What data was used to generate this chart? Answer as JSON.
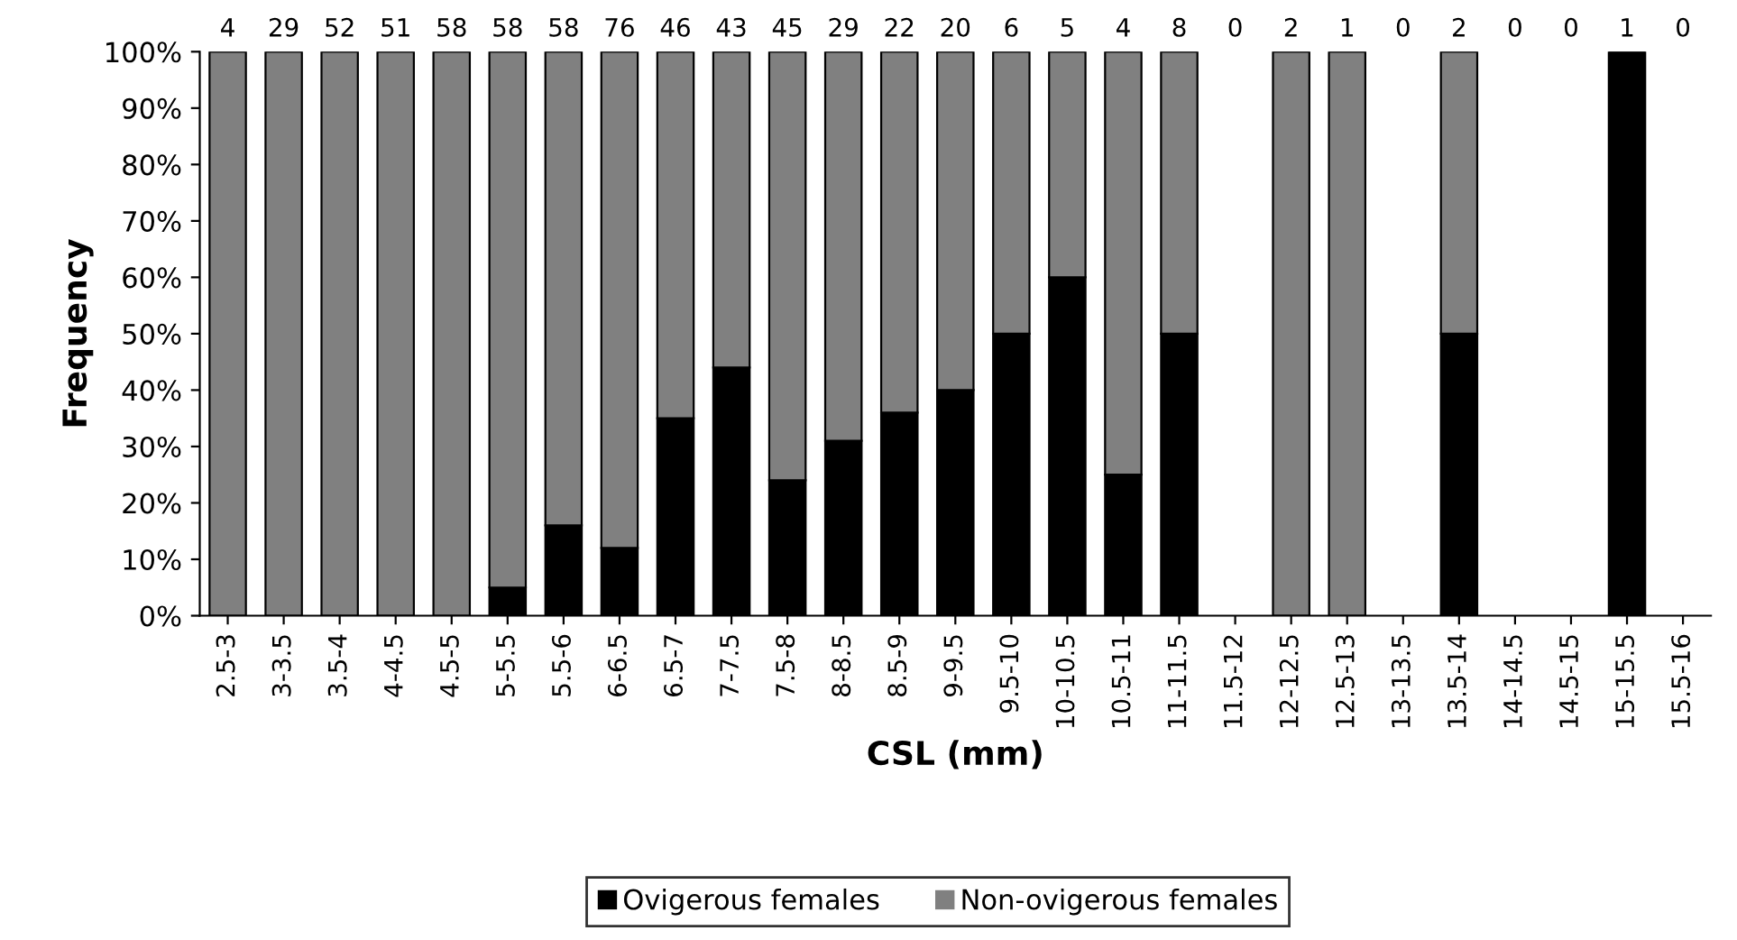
{
  "chart_data": {
    "type": "bar",
    "stacked": true,
    "xlabel": "CSL (mm)",
    "ylabel": "Frequency",
    "categories": [
      "2.5-3",
      "3-3.5",
      "3.5-4",
      "4-4.5",
      "4.5-5",
      "5-5.5",
      "5.5-6",
      "6-6.5",
      "6.5-7",
      "7-7.5",
      "7.5-8",
      "8-8.5",
      "8.5-9",
      "9-9.5",
      "9.5-10",
      "10-10.5",
      "10.5-11",
      "11-11.5",
      "11.5-12",
      "12-12.5",
      "12.5-13",
      "13-13.5",
      "13.5-14",
      "14-14.5",
      "14.5-15",
      "15-15.5",
      "15.5-16"
    ],
    "series": [
      {
        "name": "Ovigerous females",
        "color": "#000000",
        "values": [
          0,
          0,
          0,
          0,
          0,
          5,
          16,
          12,
          35,
          44,
          24,
          31,
          36,
          40,
          50,
          60,
          25,
          50,
          null,
          0,
          0,
          null,
          50,
          null,
          null,
          100,
          null
        ]
      },
      {
        "name": "Non-ovigerous females",
        "color": "#808080",
        "values": [
          100,
          100,
          100,
          100,
          100,
          95,
          84,
          88,
          65,
          56,
          76,
          69,
          64,
          60,
          50,
          40,
          75,
          50,
          null,
          100,
          100,
          null,
          50,
          null,
          null,
          0,
          null
        ]
      }
    ],
    "annotations": [
      "4",
      "29",
      "52",
      "51",
      "58",
      "58",
      "58",
      "76",
      "46",
      "43",
      "45",
      "29",
      "22",
      "20",
      "6",
      "5",
      "4",
      "8",
      "0",
      "2",
      "1",
      "0",
      "2",
      "0",
      "0",
      "1",
      "0"
    ],
    "ylim": [
      0,
      100
    ],
    "yticks": [
      {
        "value": 0,
        "label": "0%"
      },
      {
        "value": 10,
        "label": "10%"
      },
      {
        "value": 20,
        "label": "20%"
      },
      {
        "value": 30,
        "label": "30%"
      },
      {
        "value": 40,
        "label": "40%"
      },
      {
        "value": 50,
        "label": "50%"
      },
      {
        "value": 60,
        "label": "60%"
      },
      {
        "value": 70,
        "label": "70%"
      },
      {
        "value": 80,
        "label": "80%"
      },
      {
        "value": 90,
        "label": "90%"
      },
      {
        "value": 100,
        "label": "100%"
      }
    ],
    "grid": false,
    "legend": "bottom"
  }
}
